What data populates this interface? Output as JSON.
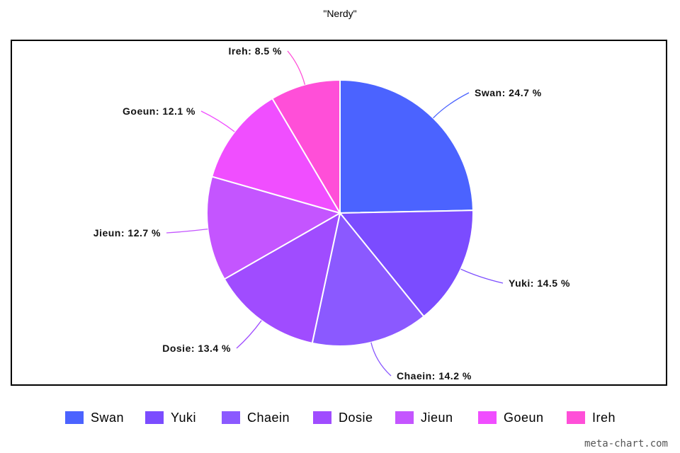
{
  "chart_data": {
    "type": "pie",
    "title": "\"Nerdy\"",
    "slices": [
      {
        "name": "Swan",
        "value": 24.7,
        "label": "Swan: 24.7 %",
        "color": "#4b63ff"
      },
      {
        "name": "Yuki",
        "value": 14.5,
        "label": "Yuki: 14.5 %",
        "color": "#7b4cff"
      },
      {
        "name": "Chaein",
        "value": 14.2,
        "label": "Chaein: 14.2 %",
        "color": "#8b59ff"
      },
      {
        "name": "Dosie",
        "value": 13.4,
        "label": "Dosie: 13.4 %",
        "color": "#a04cff"
      },
      {
        "name": "Jieun",
        "value": 12.7,
        "label": "Jieun: 12.7 %",
        "color": "#c455ff"
      },
      {
        "name": "Goeun",
        "value": 12.1,
        "label": "Goeun: 12.1 %",
        "color": "#f04eff"
      },
      {
        "name": "Ireh",
        "value": 8.5,
        "label": "Ireh: 8.5 %",
        "color": "#ff4fd8"
      }
    ],
    "legend_position": "bottom"
  },
  "watermark": "meta-chart.com"
}
